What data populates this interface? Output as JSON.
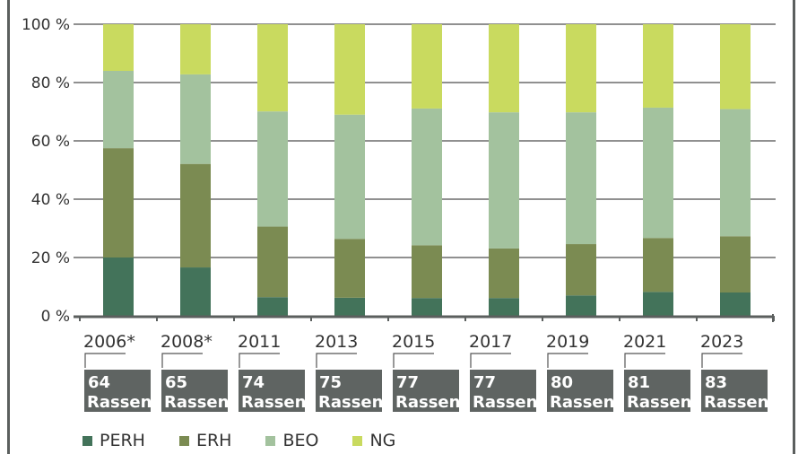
{
  "chart_data": {
    "type": "bar",
    "stacked": true,
    "categories": [
      "2006*",
      "2008*",
      "2011",
      "2013",
      "2015",
      "2017",
      "2019",
      "2021",
      "2023"
    ],
    "category_notes": [
      "64\nRassen",
      "65\nRassen",
      "74\nRassen",
      "75\nRassen",
      "77\nRassen",
      "77\nRassen",
      "80\nRassen",
      "81\nRassen",
      "83\nRassen"
    ],
    "notes_num": [
      "64",
      "65",
      "74",
      "75",
      "77",
      "77",
      "80",
      "81",
      "83"
    ],
    "notes_unit": "Rassen",
    "series": [
      {
        "name": "PERH",
        "color": "#43735a",
        "values": [
          20.0,
          16.6,
          6.4,
          6.2,
          6.1,
          6.1,
          7.0,
          8.2,
          8.0
        ]
      },
      {
        "name": "ERH",
        "color": "#7b8b52",
        "values": [
          37.5,
          35.5,
          24.2,
          20.2,
          18.1,
          17.0,
          17.6,
          18.5,
          19.3
        ]
      },
      {
        "name": "BEO",
        "color": "#a3c29e",
        "values": [
          26.5,
          30.7,
          39.5,
          42.6,
          46.9,
          46.7,
          45.2,
          44.7,
          43.6
        ]
      },
      {
        "name": "NG",
        "color": "#c9da5f",
        "values": [
          16.0,
          17.2,
          29.9,
          31.0,
          28.9,
          30.2,
          30.2,
          28.6,
          29.1
        ]
      }
    ],
    "yticks": [
      "0 %",
      "20 %",
      "40 %",
      "60 %",
      "80 %",
      "100 %"
    ],
    "ylim": [
      0,
      100
    ],
    "grid": true,
    "legend_position": "bottom-left",
    "box_color": "#5f6462"
  }
}
